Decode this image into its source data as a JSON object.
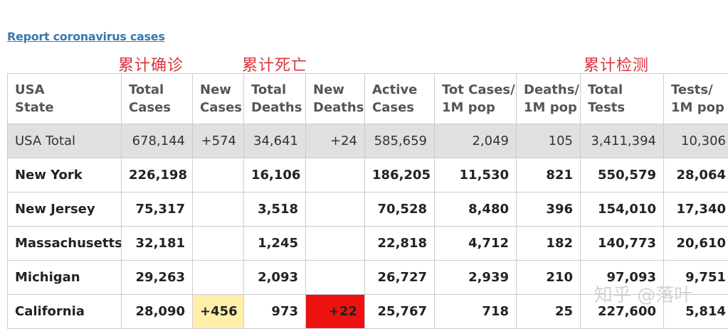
{
  "link": "Report coronavirus cases",
  "annotations": {
    "cases": "累计确诊",
    "deaths": "累计死亡",
    "tests": "累计检测"
  },
  "columns": [
    [
      "USA",
      "State"
    ],
    [
      "Total",
      "Cases"
    ],
    [
      "New",
      "Cases"
    ],
    [
      "Total",
      "Deaths"
    ],
    [
      "New",
      "Deaths"
    ],
    [
      "Active",
      "Cases"
    ],
    [
      "Tot Cases/",
      "1M pop"
    ],
    [
      "Deaths/",
      "1M pop"
    ],
    [
      "Total",
      "Tests"
    ],
    [
      "Tests/",
      "1M pop"
    ]
  ],
  "rows": [
    [
      "USA Total",
      "678,144",
      "+574",
      "34,641",
      "+24",
      "585,659",
      "2,049",
      "105",
      "3,411,394",
      "10,306"
    ],
    [
      "New York",
      "226,198",
      "",
      "16,106",
      "",
      "186,205",
      "11,530",
      "821",
      "550,579",
      "28,064"
    ],
    [
      "New Jersey",
      "75,317",
      "",
      "3,518",
      "",
      "70,528",
      "8,480",
      "396",
      "154,010",
      "17,340"
    ],
    [
      "Massachusetts",
      "32,181",
      "",
      "1,245",
      "",
      "22,818",
      "4,712",
      "182",
      "140,773",
      "20,610"
    ],
    [
      "Michigan",
      "29,263",
      "",
      "2,093",
      "",
      "26,727",
      "2,939",
      "210",
      "97,093",
      "9,751"
    ],
    [
      "California",
      "28,090",
      "+456",
      "973",
      "+22",
      "25,767",
      "718",
      "25",
      "227,600",
      "5,814"
    ]
  ],
  "watermark": "知乎 @落叶",
  "colors": {
    "new_cases_highlight": "#ffeeaa",
    "new_deaths_highlight": "#ee1111",
    "annotation": "#d9363e",
    "link": "#3a79ae"
  }
}
